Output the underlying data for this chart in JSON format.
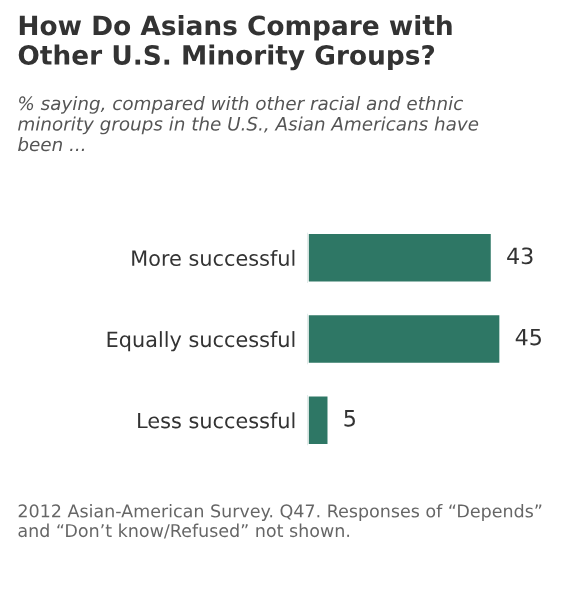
{
  "chart_data": {
    "type": "bar",
    "orientation": "horizontal",
    "title": "How Do Asians Compare with\nOther U.S. Minority Groups?",
    "subtitle": "% saying, compared with other racial and ethnic\nminority groups in the U.S., Asian Americans have\nbeen ...",
    "categories": [
      "More successful",
      "Equally successful",
      "Less successful"
    ],
    "values": [
      43,
      45,
      5
    ],
    "color": "#2e7765",
    "data_labels": true,
    "annotations": [
      "2012 Asian-American Survey. Q47. Responses of “Depends”\nand “Don’t know/Refused” not shown."
    ]
  }
}
